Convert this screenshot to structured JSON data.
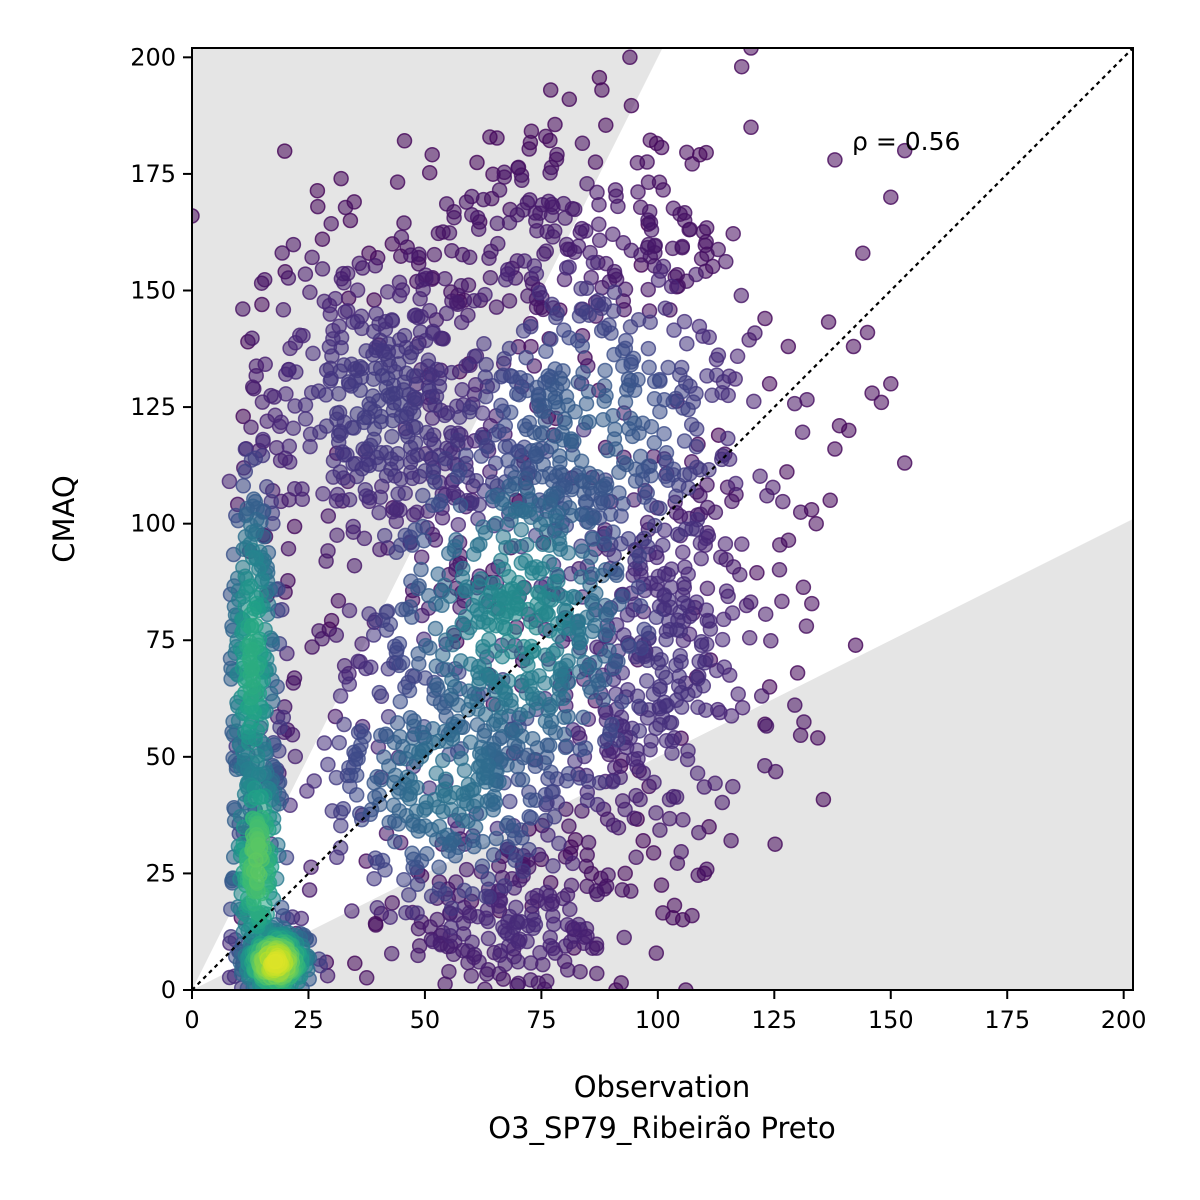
{
  "chart_data": {
    "type": "scatter",
    "title": "",
    "xlabel": "Observation",
    "xlabel_sub": "O3_SP79_Ribeirão Preto",
    "ylabel": "CMAQ",
    "xlim": [
      0,
      202
    ],
    "ylim": [
      0,
      202
    ],
    "xticks": [
      0,
      25,
      50,
      75,
      100,
      125,
      150,
      175,
      200
    ],
    "yticks": [
      0,
      25,
      50,
      75,
      100,
      125,
      150,
      175,
      200
    ],
    "grid": false,
    "legend": "none",
    "annotation": "ρ = 0.56",
    "identity_line": {
      "style": "dotted",
      "color": "#000000"
    },
    "shaded_regions": {
      "color": "#e5e5e5",
      "upper_boundary_slope": 2.0,
      "lower_boundary_slope": 0.5
    },
    "colormap": "viridis",
    "point_color_low_density": "#440154",
    "point_color_high_density": "#fde725",
    "point_opacity": 0.55,
    "density_clusters": [
      {
        "x_center": 18,
        "y_center": 6,
        "x_spread": 4,
        "y_spread": 4,
        "count": 260,
        "density": 0.95
      },
      {
        "x_center": 14,
        "y_center": 28,
        "x_spread": 3,
        "y_spread": 14,
        "count": 220,
        "density": 0.75
      },
      {
        "x_center": 13,
        "y_center": 70,
        "x_spread": 3,
        "y_spread": 22,
        "count": 260,
        "density": 0.62
      },
      {
        "x_center": 70,
        "y_center": 80,
        "x_spread": 16,
        "y_spread": 22,
        "count": 520,
        "density": 0.48
      },
      {
        "x_center": 55,
        "y_center": 45,
        "x_spread": 15,
        "y_spread": 16,
        "count": 340,
        "density": 0.38
      },
      {
        "x_center": 85,
        "y_center": 120,
        "x_spread": 18,
        "y_spread": 20,
        "count": 420,
        "density": 0.3
      },
      {
        "x_center": 40,
        "y_center": 125,
        "x_spread": 16,
        "y_spread": 18,
        "count": 380,
        "density": 0.18
      },
      {
        "x_center": 100,
        "y_center": 70,
        "x_spread": 14,
        "y_spread": 22,
        "count": 300,
        "density": 0.15
      },
      {
        "x_center": 70,
        "y_center": 14,
        "x_spread": 14,
        "y_spread": 8,
        "count": 180,
        "density": 0.12
      },
      {
        "x_center": 80,
        "y_center": 160,
        "x_spread": 20,
        "y_spread": 12,
        "count": 200,
        "density": 0.08
      }
    ],
    "outlier_points": [
      [
        0,
        166
      ],
      [
        32,
        174
      ],
      [
        88,
        193
      ],
      [
        94,
        200
      ],
      [
        120,
        202
      ],
      [
        118,
        198
      ],
      [
        120,
        185
      ],
      [
        77,
        193
      ],
      [
        81,
        191
      ],
      [
        150,
        170
      ],
      [
        153,
        180
      ],
      [
        153,
        113
      ],
      [
        138,
        178
      ],
      [
        144,
        158
      ],
      [
        146,
        128
      ],
      [
        148,
        126
      ],
      [
        150,
        130
      ],
      [
        138,
        116
      ],
      [
        145,
        141
      ],
      [
        142,
        138
      ],
      [
        137,
        105
      ],
      [
        134,
        100
      ],
      [
        133,
        103
      ],
      [
        130,
        68
      ],
      [
        123,
        57
      ],
      [
        124,
        65
      ],
      [
        111,
        35
      ],
      [
        110,
        25
      ],
      [
        105,
        54
      ],
      [
        106,
        0
      ],
      [
        96,
        47
      ],
      [
        92,
        48
      ],
      [
        93,
        25
      ],
      [
        91,
        0
      ],
      [
        82,
        13
      ],
      [
        82,
        9
      ],
      [
        75,
        28
      ],
      [
        77,
        23
      ],
      [
        73,
        18
      ],
      [
        66,
        17
      ],
      [
        60,
        19
      ],
      [
        28,
        161
      ],
      [
        20,
        154
      ],
      [
        12,
        139
      ],
      [
        11,
        123
      ],
      [
        15,
        147
      ],
      [
        27,
        168
      ],
      [
        34,
        165
      ],
      [
        38,
        158
      ],
      [
        43,
        160
      ],
      [
        123,
        144
      ],
      [
        128,
        138
      ],
      [
        141,
        120
      ],
      [
        139,
        121
      ],
      [
        124,
        130
      ]
    ]
  }
}
